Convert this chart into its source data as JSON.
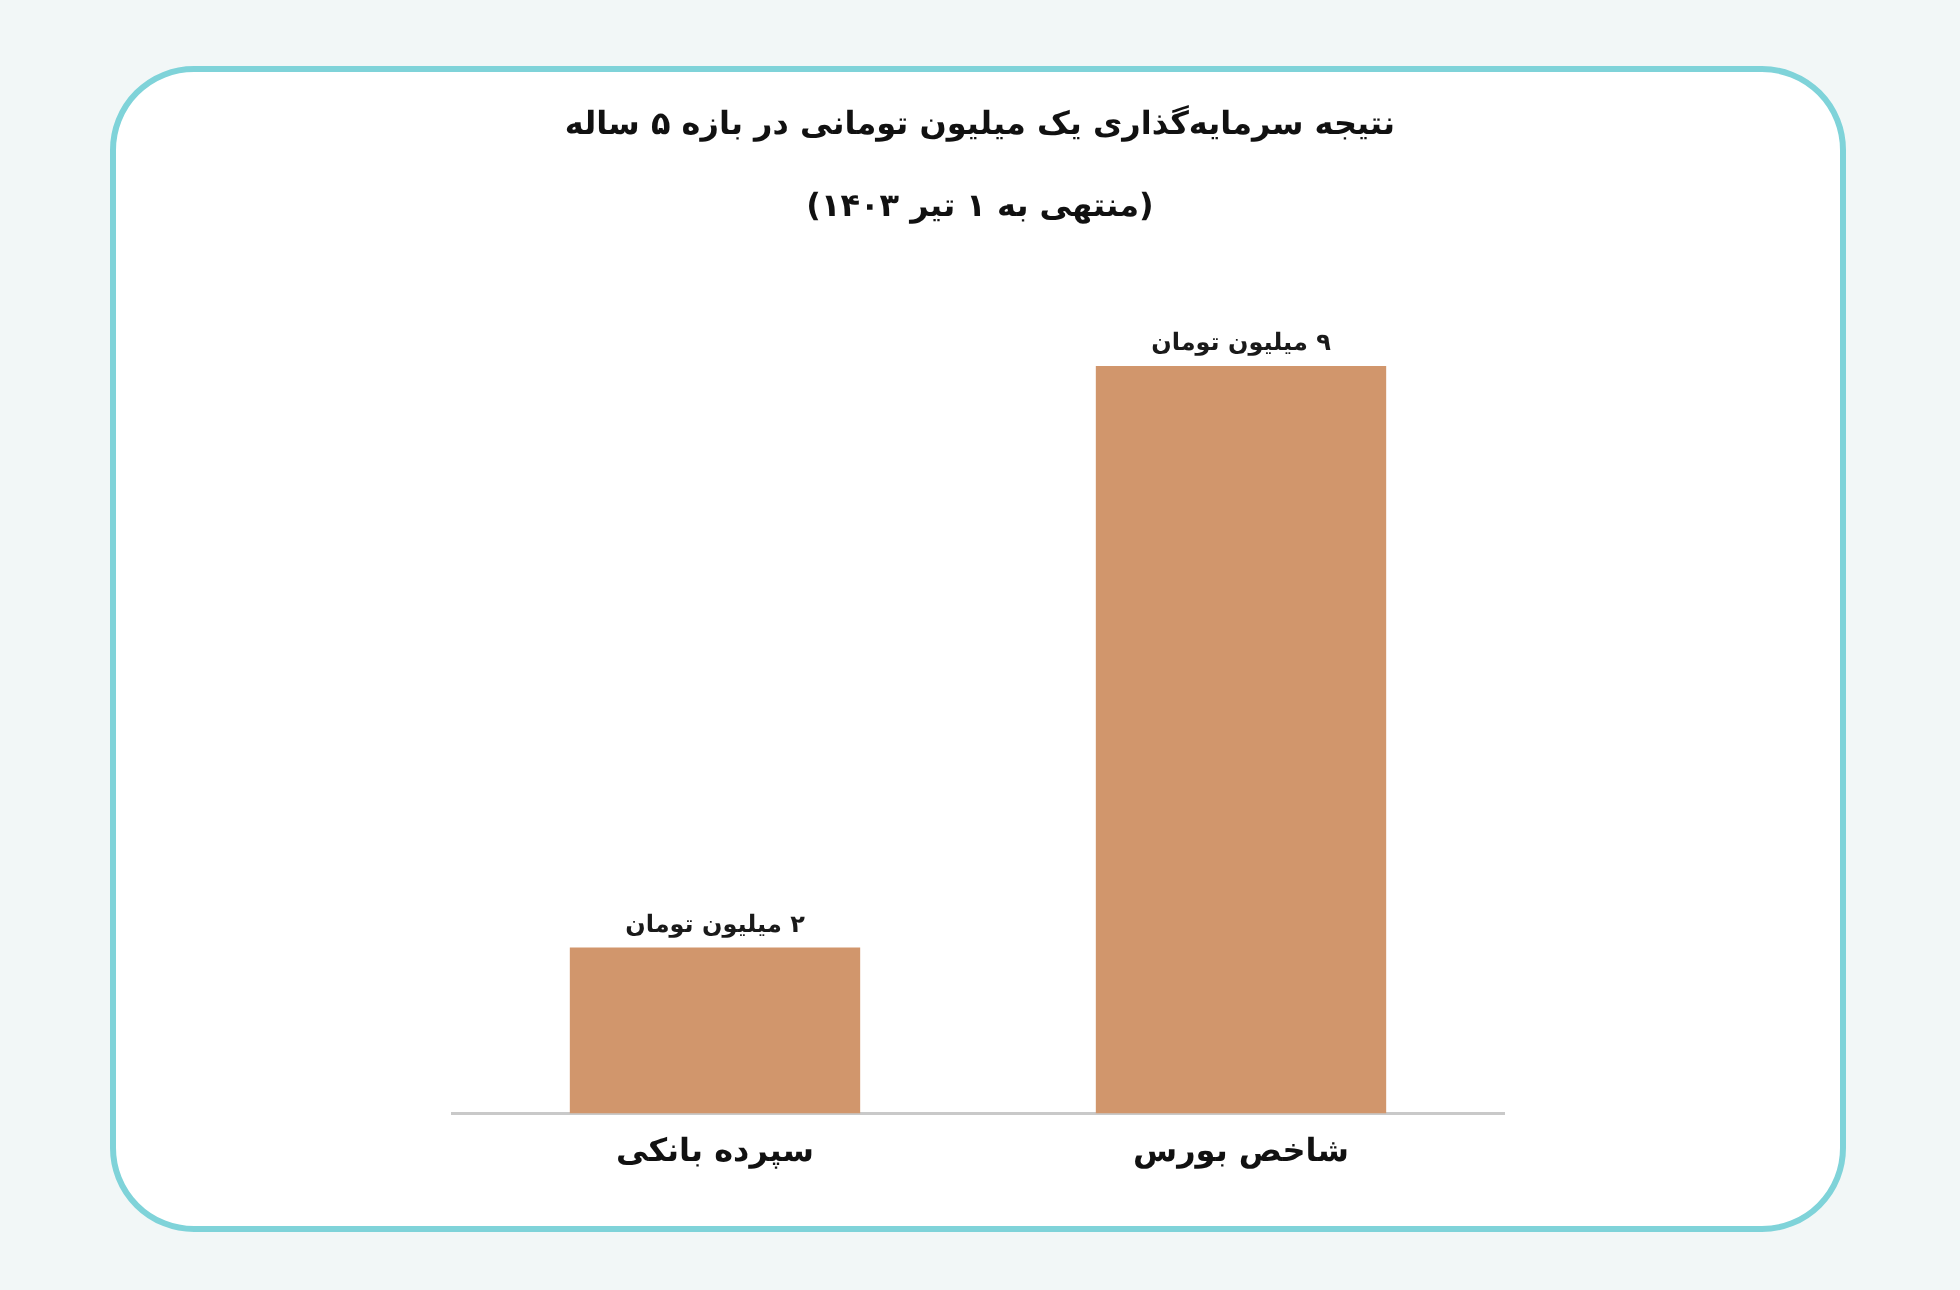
{
  "chart_data": {
    "type": "bar",
    "title": "نتیجه سرمایه‌گذاری یک میلیون تومانی در بازه ۵ ساله",
    "subtitle": "(منتهی به ۱ تیر ۱۴۰۳)",
    "categories": [
      "سپرده بانکی",
      "شاخص بورس"
    ],
    "values": [
      2,
      9
    ],
    "value_labels": [
      "۲ میلیون تومان",
      "۹ میلیون تومان"
    ],
    "color": "#d1966c",
    "tick_labels": "x",
    "grid": false,
    "legend": false
  }
}
